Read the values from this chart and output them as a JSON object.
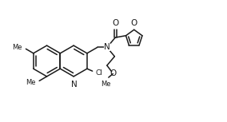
{
  "background_color": "#ffffff",
  "line_color": "#1a1a1a",
  "line_width": 1.1,
  "font_size": 6.5,
  "dpi": 100,
  "figsize": [
    2.84,
    1.53
  ],
  "xlim": [
    0,
    10.5
  ],
  "ylim": [
    0,
    5.5
  ]
}
